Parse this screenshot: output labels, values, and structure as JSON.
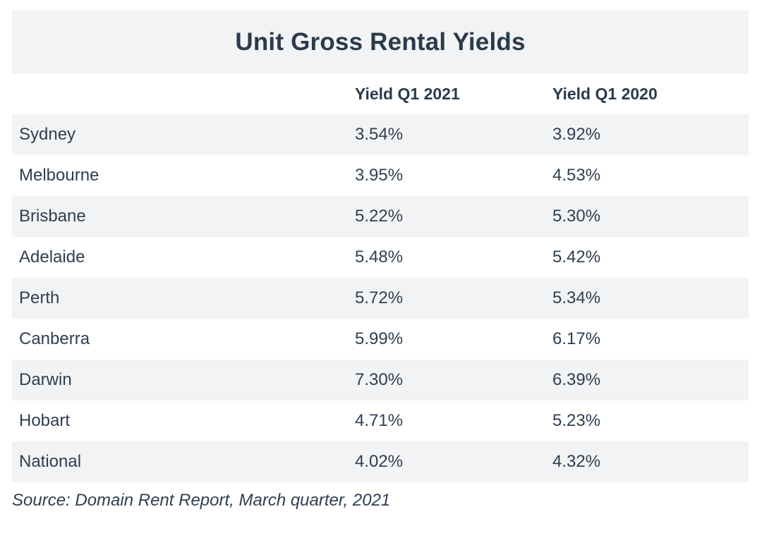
{
  "chart_data": {
    "type": "table",
    "title": "Unit Gross Rental Yields",
    "columns": [
      "",
      "Yield Q1 2021",
      "Yield Q1 2020"
    ],
    "rows": [
      {
        "city": "Sydney",
        "q1_2021": "3.54%",
        "q1_2020": "3.92%"
      },
      {
        "city": "Melbourne",
        "q1_2021": "3.95%",
        "q1_2020": "4.53%"
      },
      {
        "city": "Brisbane",
        "q1_2021": "5.22%",
        "q1_2020": "5.30%"
      },
      {
        "city": "Adelaide",
        "q1_2021": "5.48%",
        "q1_2020": "5.42%"
      },
      {
        "city": "Perth",
        "q1_2021": "5.72%",
        "q1_2020": "5.34%"
      },
      {
        "city": "Canberra",
        "q1_2021": "5.99%",
        "q1_2020": "6.17%"
      },
      {
        "city": "Darwin",
        "q1_2021": "7.30%",
        "q1_2020": "6.39%"
      },
      {
        "city": "Hobart",
        "q1_2021": "4.71%",
        "q1_2020": "5.23%"
      },
      {
        "city": "National",
        "q1_2021": "4.02%",
        "q1_2020": "4.32%"
      }
    ],
    "source": "Source: Domain Rent Report, March quarter, 2021"
  },
  "colors": {
    "band": "#f2f3f4",
    "text": "#2b3b4d"
  }
}
